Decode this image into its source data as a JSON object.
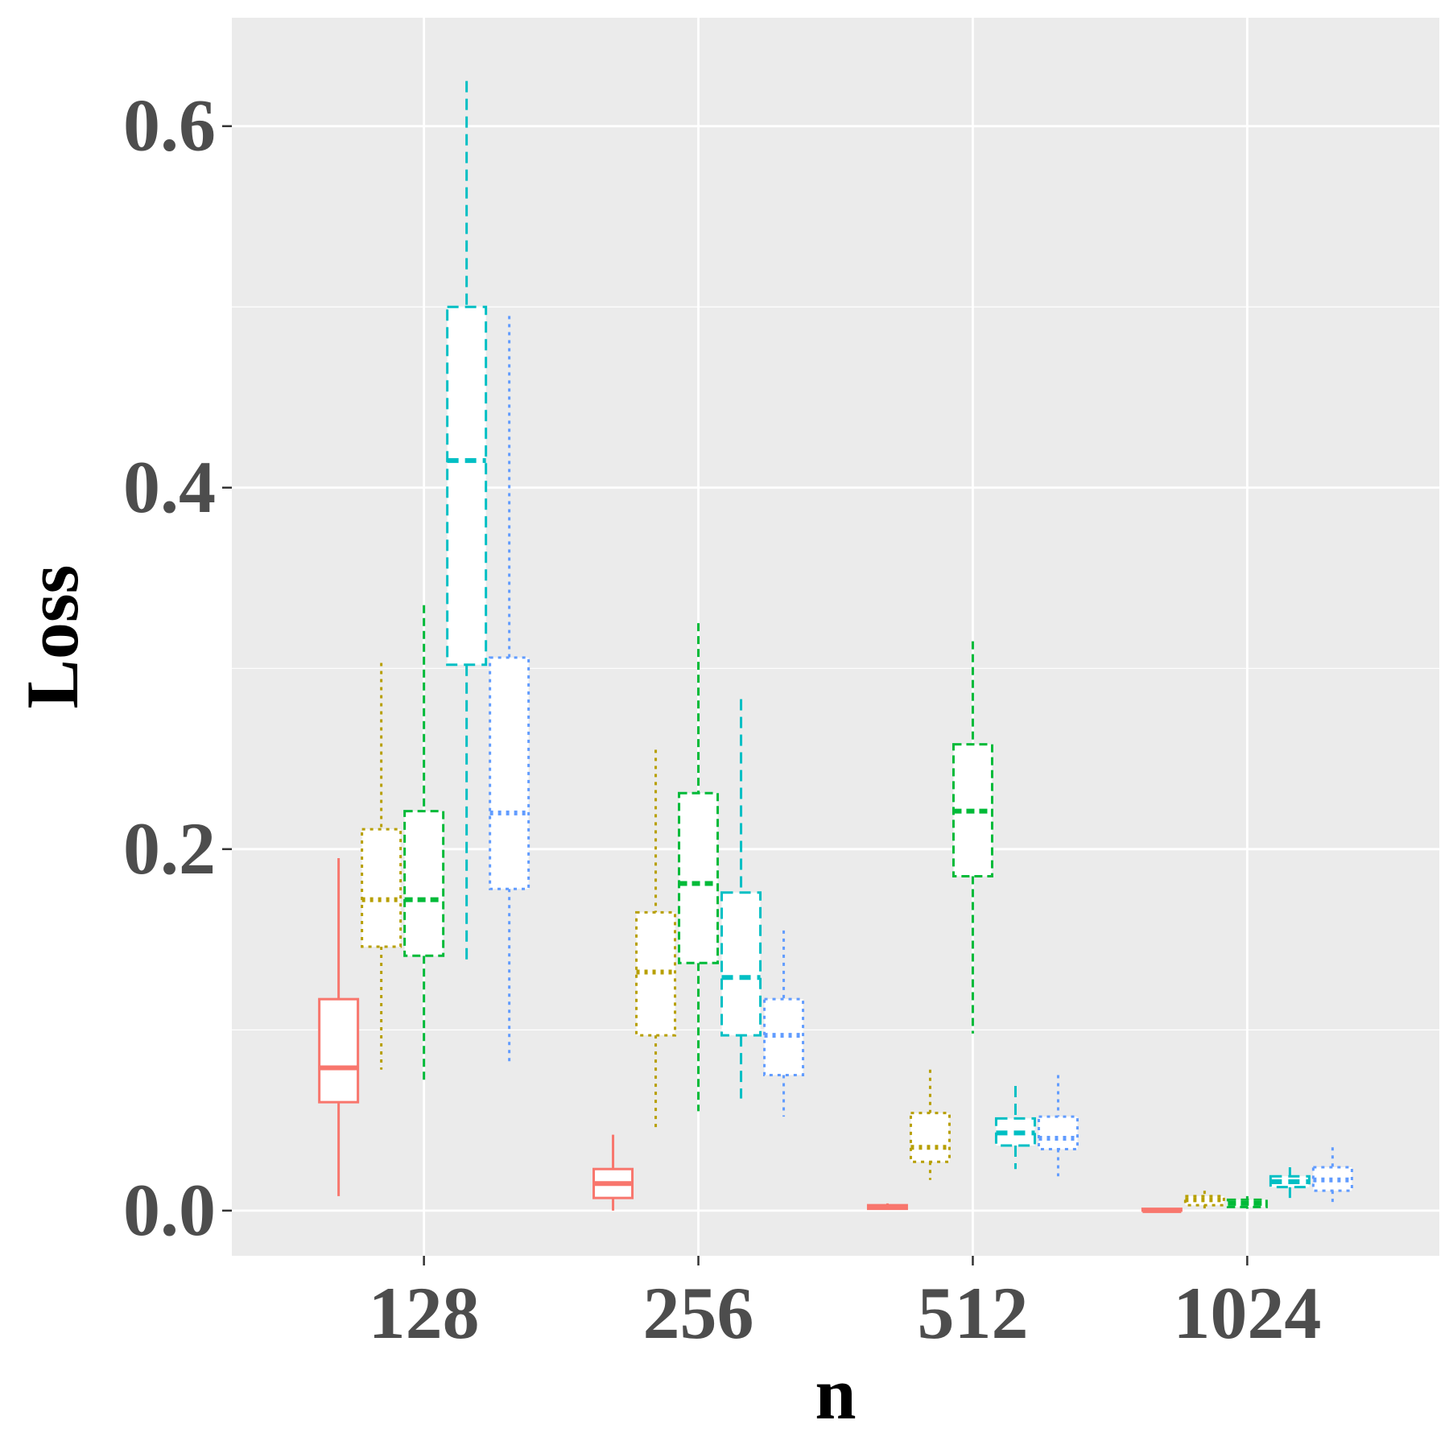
{
  "chart_data": {
    "type": "boxplot",
    "xlabel": "n",
    "ylabel": "Loss",
    "categories": [
      "128",
      "256",
      "512",
      "1024"
    ],
    "ylim": [
      -0.025,
      0.66
    ],
    "y_ticks": [
      "0.0",
      "0.2",
      "0.4",
      "0.6"
    ],
    "y_tick_values": [
      0.0,
      0.2,
      0.4,
      0.6
    ],
    "grid": true,
    "legend": "none",
    "series": [
      {
        "color": "#F8766D",
        "line_style": "solid",
        "boxes": [
          {
            "lower_whisker": 0.008,
            "q1": 0.06,
            "median": 0.079,
            "q3": 0.117,
            "upper_whisker": 0.195
          },
          {
            "lower_whisker": 0.0,
            "q1": 0.007,
            "median": 0.015,
            "q3": 0.023,
            "upper_whisker": 0.042
          },
          {
            "lower_whisker": 0.001,
            "q1": 0.001,
            "median": 0.002,
            "q3": 0.003,
            "upper_whisker": 0.004
          },
          {
            "lower_whisker": 0.0,
            "q1": 0.0,
            "median": 0.0,
            "q3": 0.001,
            "upper_whisker": 0.001
          }
        ]
      },
      {
        "color": "#B79F00",
        "line_style": "dotted",
        "boxes": [
          {
            "lower_whisker": 0.078,
            "q1": 0.146,
            "median": 0.172,
            "q3": 0.211,
            "upper_whisker": 0.303
          },
          {
            "lower_whisker": 0.044,
            "q1": 0.097,
            "median": 0.132,
            "q3": 0.165,
            "upper_whisker": 0.255
          },
          {
            "lower_whisker": 0.017,
            "q1": 0.027,
            "median": 0.035,
            "q3": 0.054,
            "upper_whisker": 0.078
          },
          {
            "lower_whisker": 0.001,
            "q1": 0.003,
            "median": 0.006,
            "q3": 0.008,
            "upper_whisker": 0.011
          }
        ]
      },
      {
        "color": "#00BA38",
        "line_style": "dashed",
        "boxes": [
          {
            "lower_whisker": 0.07,
            "q1": 0.141,
            "median": 0.172,
            "q3": 0.221,
            "upper_whisker": 0.335
          },
          {
            "lower_whisker": 0.055,
            "q1": 0.137,
            "median": 0.181,
            "q3": 0.231,
            "upper_whisker": 0.325
          },
          {
            "lower_whisker": 0.098,
            "q1": 0.185,
            "median": 0.221,
            "q3": 0.258,
            "upper_whisker": 0.315
          },
          {
            "lower_whisker": 0.001,
            "q1": 0.002,
            "median": 0.004,
            "q3": 0.006,
            "upper_whisker": 0.008
          }
        ]
      },
      {
        "color": "#00BFC4",
        "line_style": "longdash",
        "boxes": [
          {
            "lower_whisker": 0.138,
            "q1": 0.302,
            "median": 0.415,
            "q3": 0.5,
            "upper_whisker": 0.625
          },
          {
            "lower_whisker": 0.062,
            "q1": 0.097,
            "median": 0.129,
            "q3": 0.176,
            "upper_whisker": 0.283
          },
          {
            "lower_whisker": 0.023,
            "q1": 0.036,
            "median": 0.043,
            "q3": 0.051,
            "upper_whisker": 0.069
          },
          {
            "lower_whisker": 0.007,
            "q1": 0.013,
            "median": 0.016,
            "q3": 0.019,
            "upper_whisker": 0.024
          }
        ]
      },
      {
        "color": "#619CFF",
        "line_style": "dotted",
        "boxes": [
          {
            "lower_whisker": 0.082,
            "q1": 0.178,
            "median": 0.22,
            "q3": 0.306,
            "upper_whisker": 0.495
          },
          {
            "lower_whisker": 0.052,
            "q1": 0.075,
            "median": 0.097,
            "q3": 0.117,
            "upper_whisker": 0.155
          },
          {
            "lower_whisker": 0.019,
            "q1": 0.034,
            "median": 0.04,
            "q3": 0.052,
            "upper_whisker": 0.075
          },
          {
            "lower_whisker": 0.003,
            "q1": 0.011,
            "median": 0.017,
            "q3": 0.024,
            "upper_whisker": 0.035
          }
        ]
      }
    ]
  }
}
